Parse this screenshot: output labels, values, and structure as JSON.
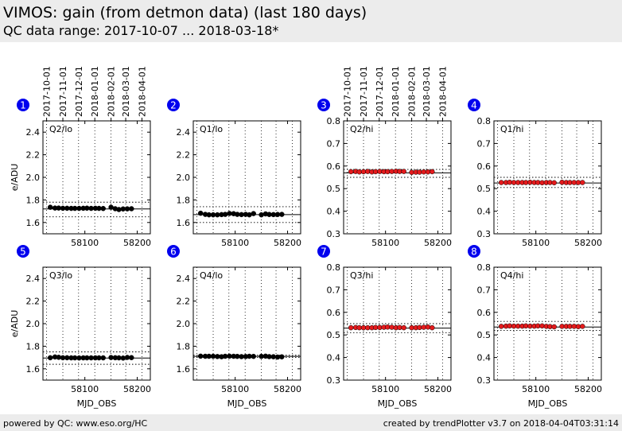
{
  "header": {
    "title": "VIMOS: gain (from detmon data) (last 180 days)",
    "subtitle": "QC data range: 2017-10-07 ... 2018-03-18*"
  },
  "footer": {
    "left": "powered by QC: www.eso.org/HC",
    "right": "created by trendPlotter v3.7 on 2018-04-04T03:31:14"
  },
  "colors": {
    "lo_points": "#000000",
    "hi_points": "#e41a1c",
    "badge": "#0000ee"
  },
  "chart_data": [
    {
      "type": "scatter",
      "panel_number": "1",
      "label": "Q2/lo",
      "color": "#000000",
      "xlim": [
        58020,
        58225
      ],
      "ylim": [
        1.5,
        2.5
      ],
      "xticks": [
        58100,
        58200
      ],
      "yticks": [
        1.6,
        1.8,
        2.0,
        2.2,
        2.4
      ],
      "ylabel": "e/ADU",
      "xlabel": "",
      "reference": 1.72,
      "limits": [
        1.65,
        1.78
      ],
      "date_ticks": [
        "2017-10-01",
        "2017-11-01",
        "2017-12-01",
        "2018-01-01",
        "2018-02-01",
        "2018-03-01",
        "2018-04-01"
      ],
      "date_tick_x": [
        58027,
        58058,
        58088,
        58119,
        58150,
        58178,
        58209
      ],
      "x": [
        58034,
        58043,
        58050,
        58058,
        58066,
        58074,
        58081,
        58089,
        58097,
        58104,
        58112,
        58120,
        58127,
        58135,
        58150,
        58158,
        58165,
        58173,
        58181,
        58189
      ],
      "y": [
        1.735,
        1.728,
        1.728,
        1.726,
        1.726,
        1.725,
        1.725,
        1.725,
        1.726,
        1.727,
        1.725,
        1.726,
        1.725,
        1.724,
        1.735,
        1.722,
        1.715,
        1.72,
        1.721,
        1.722
      ]
    },
    {
      "type": "scatter",
      "panel_number": "2",
      "label": "Q1/lo",
      "color": "#000000",
      "xlim": [
        58020,
        58225
      ],
      "ylim": [
        1.5,
        2.5
      ],
      "xticks": [
        58100,
        58200
      ],
      "yticks": [
        1.6,
        1.8,
        2.0,
        2.2,
        2.4
      ],
      "ylabel": "",
      "xlabel": "",
      "reference": 1.67,
      "limits": [
        1.6,
        1.74
      ],
      "date_ticks": [],
      "date_tick_x": [],
      "x": [
        58034,
        58043,
        58050,
        58058,
        58066,
        58074,
        58081,
        58089,
        58097,
        58104,
        58112,
        58120,
        58127,
        58135,
        58150,
        58158,
        58165,
        58173,
        58181,
        58189
      ],
      "y": [
        1.682,
        1.672,
        1.668,
        1.668,
        1.668,
        1.67,
        1.672,
        1.68,
        1.678,
        1.672,
        1.67,
        1.672,
        1.668,
        1.679,
        1.668,
        1.676,
        1.671,
        1.67,
        1.671,
        1.672
      ]
    },
    {
      "type": "scatter",
      "panel_number": "3",
      "label": "Q2/hi",
      "color": "#e41a1c",
      "xlim": [
        58020,
        58225
      ],
      "ylim": [
        0.3,
        0.8
      ],
      "xticks": [
        58100,
        58200
      ],
      "yticks": [
        0.3,
        0.4,
        0.5,
        0.6,
        0.7,
        0.8
      ],
      "ylabel": "",
      "xlabel": "",
      "reference": 0.57,
      "limits": [
        0.55,
        0.585
      ],
      "date_ticks": [
        "2017-10-01",
        "2017-11-01",
        "2017-12-01",
        "2018-01-01",
        "2018-02-01",
        "2018-03-01",
        "2018-04-01"
      ],
      "date_tick_x": [
        58027,
        58058,
        58088,
        58119,
        58150,
        58178,
        58209
      ],
      "x": [
        58034,
        58043,
        58050,
        58058,
        58066,
        58074,
        58081,
        58089,
        58097,
        58104,
        58112,
        58120,
        58127,
        58135,
        58150,
        58158,
        58165,
        58173,
        58181,
        58189
      ],
      "y": [
        0.575,
        0.576,
        0.574,
        0.575,
        0.576,
        0.574,
        0.575,
        0.576,
        0.575,
        0.575,
        0.576,
        0.577,
        0.576,
        0.576,
        0.572,
        0.573,
        0.573,
        0.574,
        0.574,
        0.575
      ]
    },
    {
      "type": "scatter",
      "panel_number": "4",
      "label": "Q1/hi",
      "color": "#e41a1c",
      "xlim": [
        58020,
        58225
      ],
      "ylim": [
        0.3,
        0.8
      ],
      "xticks": [
        58100,
        58200
      ],
      "yticks": [
        0.3,
        0.4,
        0.5,
        0.6,
        0.7,
        0.8
      ],
      "ylabel": "",
      "xlabel": "",
      "reference": 0.525,
      "limits": [
        0.505,
        0.55
      ],
      "date_ticks": [],
      "date_tick_x": [],
      "x": [
        58034,
        58043,
        58050,
        58058,
        58066,
        58074,
        58081,
        58089,
        58097,
        58104,
        58112,
        58120,
        58127,
        58135,
        58150,
        58158,
        58165,
        58173,
        58181,
        58189
      ],
      "y": [
        0.527,
        0.527,
        0.528,
        0.527,
        0.527,
        0.527,
        0.527,
        0.528,
        0.527,
        0.527,
        0.526,
        0.527,
        0.527,
        0.526,
        0.528,
        0.527,
        0.527,
        0.527,
        0.527,
        0.527
      ]
    },
    {
      "type": "scatter",
      "panel_number": "5",
      "label": "Q3/lo",
      "color": "#000000",
      "xlim": [
        58020,
        58225
      ],
      "ylim": [
        1.5,
        2.5
      ],
      "xticks": [
        58100,
        58200
      ],
      "yticks": [
        1.6,
        1.8,
        2.0,
        2.2,
        2.4
      ],
      "ylabel": "e/ADU",
      "xlabel": "MJD_OBS",
      "reference": 1.695,
      "limits": [
        1.64,
        1.75
      ],
      "date_ticks": [],
      "date_tick_x": [],
      "x": [
        58034,
        58043,
        58050,
        58058,
        58066,
        58074,
        58081,
        58089,
        58097,
        58104,
        58112,
        58120,
        58127,
        58135,
        58150,
        58158,
        58165,
        58173,
        58181,
        58189
      ],
      "y": [
        1.698,
        1.705,
        1.702,
        1.698,
        1.698,
        1.697,
        1.697,
        1.696,
        1.697,
        1.697,
        1.697,
        1.697,
        1.697,
        1.697,
        1.7,
        1.698,
        1.697,
        1.695,
        1.701,
        1.699
      ]
    },
    {
      "type": "scatter",
      "panel_number": "6",
      "label": "Q4/lo",
      "color": "#000000",
      "xlim": [
        58020,
        58225
      ],
      "ylim": [
        1.5,
        2.5
      ],
      "xticks": [
        58100,
        58200
      ],
      "yticks": [
        1.6,
        1.8,
        2.0,
        2.2,
        2.4
      ],
      "ylabel": "",
      "xlabel": "MJD_OBS",
      "reference": 1.71,
      "limits": [
        1.7,
        1.72
      ],
      "date_ticks": [],
      "date_tick_x": [],
      "x": [
        58034,
        58043,
        58050,
        58058,
        58066,
        58074,
        58081,
        58089,
        58097,
        58104,
        58112,
        58120,
        58127,
        58135,
        58150,
        58158,
        58165,
        58173,
        58181,
        58189
      ],
      "y": [
        1.712,
        1.711,
        1.711,
        1.711,
        1.709,
        1.707,
        1.711,
        1.712,
        1.711,
        1.71,
        1.708,
        1.709,
        1.711,
        1.71,
        1.71,
        1.712,
        1.708,
        1.707,
        1.704,
        1.706
      ]
    },
    {
      "type": "scatter",
      "panel_number": "7",
      "label": "Q3/hi",
      "color": "#e41a1c",
      "xlim": [
        58020,
        58225
      ],
      "ylim": [
        0.3,
        0.8
      ],
      "xticks": [
        58100,
        58200
      ],
      "yticks": [
        0.3,
        0.4,
        0.5,
        0.6,
        0.7,
        0.8
      ],
      "ylabel": "",
      "xlabel": "MJD_OBS",
      "reference": 0.53,
      "limits": [
        0.51,
        0.55
      ],
      "date_ticks": [],
      "date_tick_x": [],
      "x": [
        58034,
        58043,
        58050,
        58058,
        58066,
        58074,
        58081,
        58089,
        58097,
        58104,
        58112,
        58120,
        58127,
        58135,
        58150,
        58158,
        58165,
        58173,
        58181,
        58189
      ],
      "y": [
        0.532,
        0.533,
        0.532,
        0.532,
        0.532,
        0.532,
        0.533,
        0.533,
        0.534,
        0.535,
        0.534,
        0.532,
        0.533,
        0.532,
        0.532,
        0.532,
        0.533,
        0.534,
        0.535,
        0.532
      ]
    },
    {
      "type": "scatter",
      "panel_number": "8",
      "label": "Q4/hi",
      "color": "#e41a1c",
      "xlim": [
        58020,
        58225
      ],
      "ylim": [
        0.3,
        0.8
      ],
      "xticks": [
        58100,
        58200
      ],
      "yticks": [
        0.3,
        0.4,
        0.5,
        0.6,
        0.7,
        0.8
      ],
      "ylabel": "",
      "xlabel": "MJD_OBS",
      "reference": 0.535,
      "limits": [
        0.52,
        0.56
      ],
      "date_ticks": [],
      "date_tick_x": [],
      "x": [
        58034,
        58043,
        58050,
        58058,
        58066,
        58074,
        58081,
        58089,
        58097,
        58104,
        58112,
        58120,
        58127,
        58135,
        58150,
        58158,
        58165,
        58173,
        58181,
        58189
      ],
      "y": [
        0.538,
        0.539,
        0.54,
        0.539,
        0.539,
        0.539,
        0.54,
        0.539,
        0.539,
        0.54,
        0.54,
        0.538,
        0.537,
        0.536,
        0.538,
        0.538,
        0.538,
        0.538,
        0.537,
        0.538
      ]
    }
  ]
}
